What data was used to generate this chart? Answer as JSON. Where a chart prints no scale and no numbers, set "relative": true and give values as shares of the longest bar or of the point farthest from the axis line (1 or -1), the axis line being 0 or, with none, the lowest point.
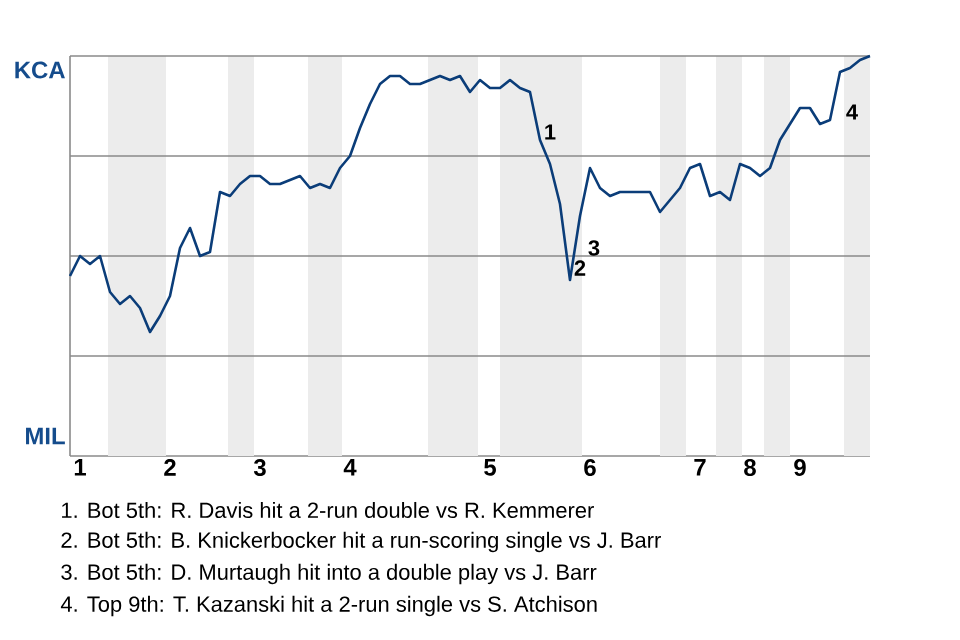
{
  "chart_data": {
    "type": "line",
    "relative": true,
    "categories": [
      null,
      "1",
      null,
      null,
      null,
      null,
      null,
      null,
      null,
      null,
      "2",
      null,
      null,
      null,
      null,
      null,
      null,
      null,
      null,
      "3",
      null,
      null,
      null,
      null,
      null,
      null,
      null,
      null,
      "4",
      null,
      null,
      null,
      null,
      null,
      null,
      null,
      null,
      null,
      null,
      null,
      null,
      null,
      "5",
      null,
      null,
      null,
      null,
      null,
      null,
      null,
      null,
      null,
      "6",
      null,
      null,
      null,
      null,
      null,
      null,
      null,
      null,
      null,
      null,
      "7",
      null,
      null,
      null,
      null,
      "8",
      null,
      null,
      null,
      null,
      "9",
      null,
      null,
      null,
      null,
      null,
      null,
      null
    ],
    "grid": "y",
    "marker": "none",
    "line_style": "solid",
    "series": [
      {
        "color": "#0b3d79",
        "values": [
          0.45,
          0.5,
          0.48,
          0.5,
          0.41,
          0.38,
          0.4,
          0.37,
          0.31,
          0.35,
          0.4,
          0.52,
          0.57,
          0.5,
          0.51,
          0.66,
          0.65,
          0.68,
          0.7,
          0.7,
          0.68,
          0.68,
          0.69,
          0.7,
          0.67,
          0.68,
          0.67,
          0.72,
          0.75,
          0.82,
          0.88,
          0.93,
          0.95,
          0.95,
          0.93,
          0.93,
          0.94,
          0.95,
          0.94,
          0.95,
          0.91,
          0.94,
          0.92,
          0.92,
          0.94,
          0.92,
          0.91,
          0.79,
          0.73,
          0.63,
          0.44,
          0.6,
          0.72,
          0.67,
          0.65,
          0.66,
          0.66,
          0.66,
          0.66,
          0.61,
          0.64,
          0.67,
          0.72,
          0.73,
          0.65,
          0.66,
          0.64,
          0.73,
          0.72,
          0.7,
          0.72,
          0.79,
          0.83,
          0.87,
          0.87,
          0.83,
          0.84,
          0.96,
          0.97,
          0.99,
          1
        ]
      }
    ],
    "annotations": [
      "KCA",
      "MIL",
      "1",
      "2",
      "3",
      "4",
      "1. Bot 5th: R. Davis hit a 2-run double vs R. Kemmerer",
      "2. Bot 5th: B. Knickerbocker hit a run-scoring single vs J. Barr",
      "3. Bot 5th: D. Murtaugh hit into a double play vs J. Barr",
      "4. Top 9th: T. Kazanski hit a 2-run single vs S. Atchison"
    ]
  }
}
